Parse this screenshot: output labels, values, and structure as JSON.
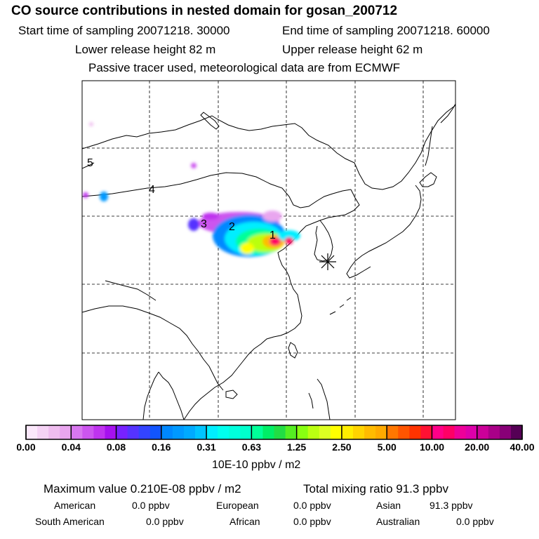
{
  "header": {
    "title": "CO  source contributions in nested domain for gosan_200712",
    "start_time": "Start time of sampling 20071218. 30000",
    "end_time": "End time of sampling 20071218. 60000",
    "lower_release": "Lower release height   82 m",
    "upper_release": "Upper release height   62 m",
    "tracer_note": "Passive tracer used, meteorological data are from ECMWF"
  },
  "map": {
    "station_marker": "asterisk-station",
    "source_labels": [
      "1",
      "2",
      "3",
      "4",
      "5"
    ]
  },
  "colorbar": {
    "tick_labels": [
      "0.00",
      "0.04",
      "0.08",
      "0.16",
      "0.31",
      "0.63",
      "1.25",
      "2.50",
      "5.00",
      "10.00",
      "20.00",
      "40.00"
    ],
    "units": "10E-10 ppbv / m2",
    "colors": [
      "#fbe8fb",
      "#f5d3f5",
      "#efbdef",
      "#e9a6ef",
      "#d877ef",
      "#cc55ef",
      "#bf33ef",
      "#a611ef",
      "#7722ff",
      "#5533ff",
      "#3344ff",
      "#1155ff",
      "#0088ff",
      "#0099ff",
      "#00aaff",
      "#00c4ff",
      "#00eeff",
      "#00ffee",
      "#00ffdd",
      "#00ffcc",
      "#00ff99",
      "#00ee66",
      "#22dd44",
      "#55ee22",
      "#88ff11",
      "#bbff11",
      "#ddff22",
      "#ffff00",
      "#ffee00",
      "#ffd400",
      "#ffbb00",
      "#ffaa00",
      "#ff7700",
      "#ff5500",
      "#ff3300",
      "#ff1133",
      "#ff0088",
      "#ff0066",
      "#ee0099",
      "#dd00aa",
      "#cc0099",
      "#aa0088",
      "#880077",
      "#550055"
    ]
  },
  "summary": {
    "max_value": "Maximum value  0.210E-08 ppbv / m2",
    "total_mixing": "Total mixing ratio      91.3 ppbv",
    "regions": [
      {
        "name": "American",
        "value": "0.0 ppbv"
      },
      {
        "name": "European",
        "value": "0.0 ppbv"
      },
      {
        "name": "Asian",
        "value": "91.3 ppbv"
      },
      {
        "name": "South American",
        "value": "0.0 ppbv"
      },
      {
        "name": "African",
        "value": "0.0 ppbv"
      },
      {
        "name": "Australian",
        "value": "0.0 ppbv"
      }
    ]
  }
}
